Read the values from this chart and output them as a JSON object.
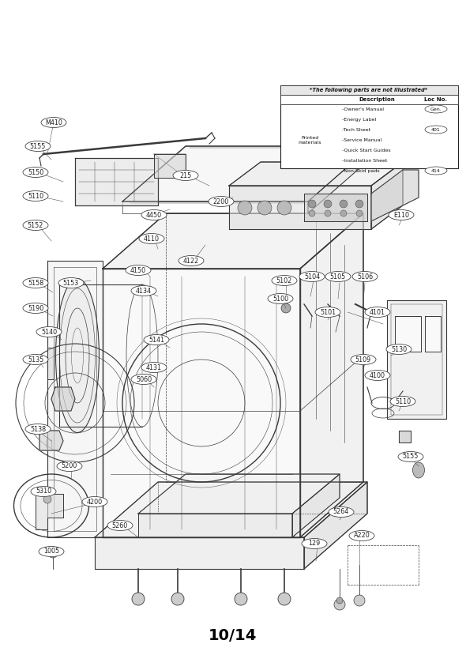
{
  "title": "10/14",
  "title_fontsize": 14,
  "background_color": "#ffffff",
  "table_title": "*The following parts are not illustrated*",
  "table_headers": [
    "Description",
    "Loc No."
  ],
  "table_row_header": "Printed materials",
  "table_rows": [
    [
      "-Owner's Manual",
      "Gen."
    ],
    [
      "-Energy Label",
      ""
    ],
    [
      "-Tech Sheet",
      "401"
    ],
    [
      "-Service Manual",
      ""
    ],
    [
      "-Quick Start Guides",
      ""
    ],
    [
      "-Installation Sheet",
      ""
    ],
    [
      "-Non-Skid pads",
      "414"
    ]
  ],
  "line_color": "#3a3a3a",
  "label_fontsize": 5.8,
  "label_color": "#222222",
  "label_bg": "#ffffff",
  "label_edge": "#444444"
}
